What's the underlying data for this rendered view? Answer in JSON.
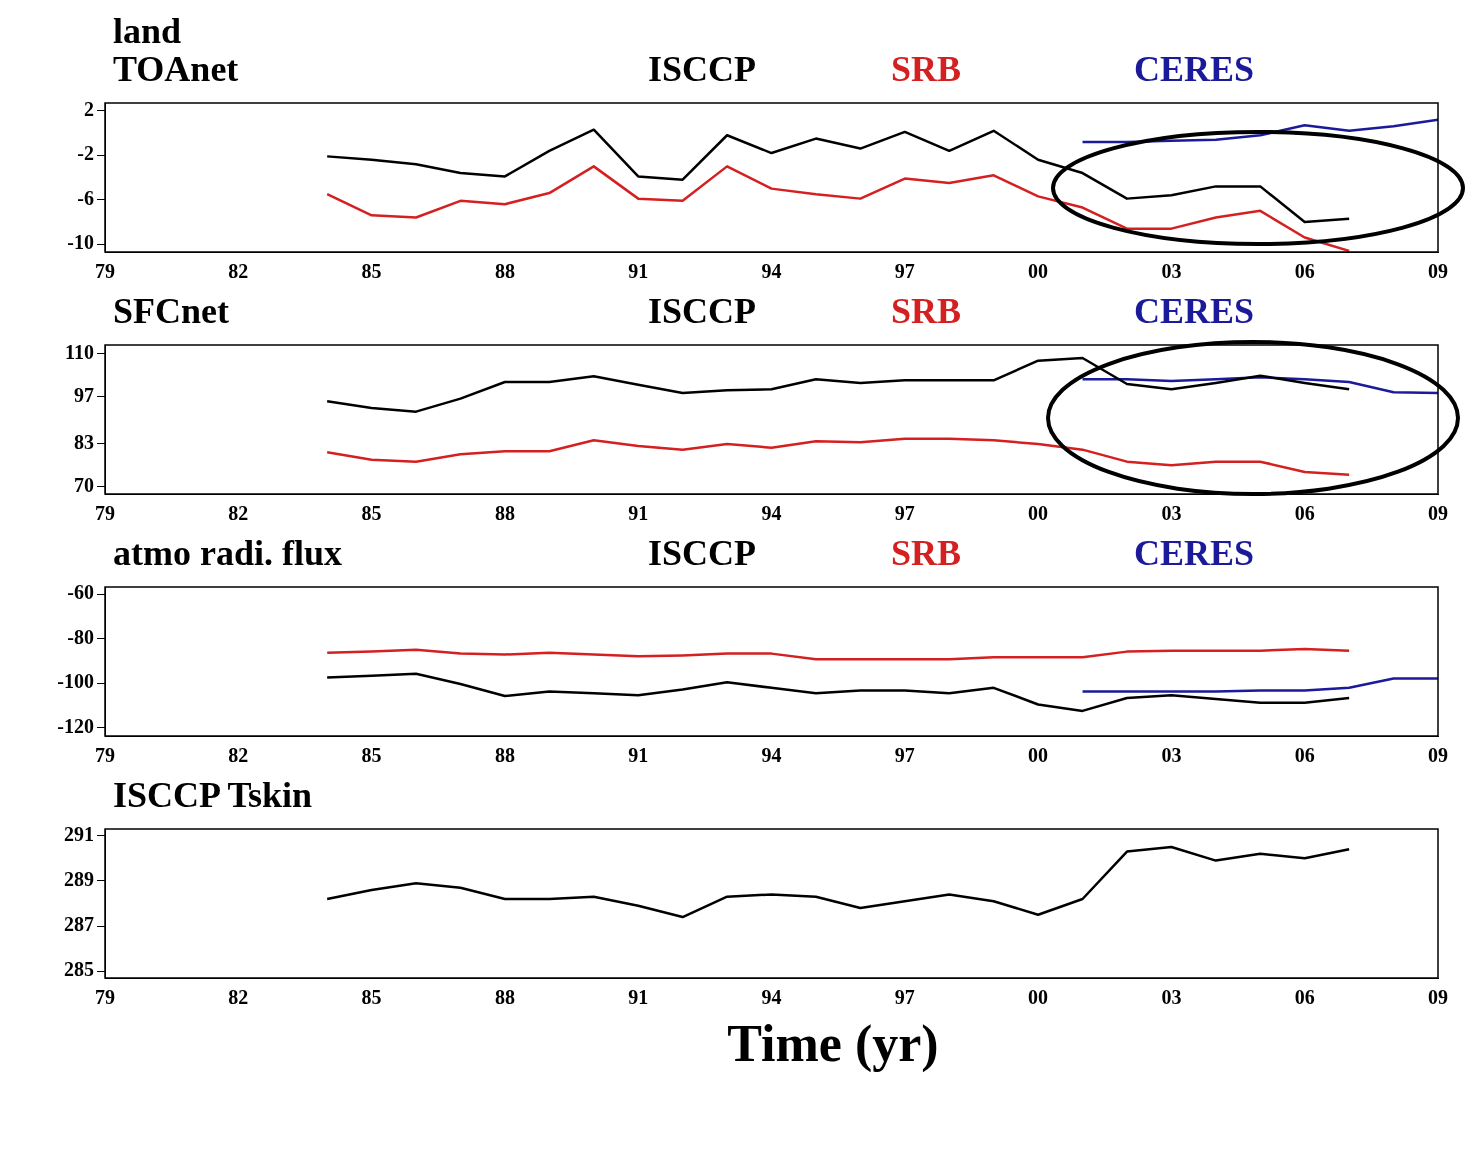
{
  "chart_data": [
    {
      "type": "line",
      "title": "land",
      "subtitle": "TOAnet",
      "legend": "top",
      "x": [
        1984,
        1985,
        1986,
        1987,
        1988,
        1989,
        1990,
        1991,
        1992,
        1993,
        1994,
        1995,
        1996,
        1997,
        1998,
        1999,
        2000,
        2001,
        2002,
        2003,
        2004,
        2005,
        2006,
        2007
      ],
      "xlim": [
        1979,
        2009
      ],
      "xticks": [
        {
          "value": 1979,
          "label": "79"
        },
        {
          "value": 1982,
          "label": "82"
        },
        {
          "value": 1985,
          "label": "85"
        },
        {
          "value": 1988,
          "label": "88"
        },
        {
          "value": 1991,
          "label": "91"
        },
        {
          "value": 1994,
          "label": "94"
        },
        {
          "value": 1997,
          "label": "97"
        },
        {
          "value": 2000,
          "label": "00"
        },
        {
          "value": 2003,
          "label": "03"
        },
        {
          "value": 2006,
          "label": "06"
        },
        {
          "value": 2009,
          "label": "09"
        }
      ],
      "ylim": [
        -10.7,
        2.7
      ],
      "yticks": [
        2,
        -2,
        -6,
        -10
      ],
      "series": [
        {
          "name": "ISCCP",
          "color": "#000000",
          "values": [
            -2.1,
            -2.4,
            -2.8,
            -3.6,
            -3.9,
            -1.6,
            0.3,
            -3.9,
            -4.2,
            -0.2,
            -1.8,
            -0.5,
            -1.4,
            0.1,
            -1.6,
            0.2,
            -2.4,
            -3.6,
            -5.9,
            -5.6,
            -4.8,
            -4.8,
            -8.0,
            -7.7
          ]
        },
        {
          "name": "SRB",
          "color": "#d42020",
          "values": [
            -5.5,
            -7.4,
            -7.6,
            -6.1,
            -6.4,
            -5.4,
            -3.0,
            -5.9,
            -6.1,
            -3.0,
            -5.0,
            -5.5,
            -5.9,
            -4.1,
            -4.5,
            -3.8,
            -5.7,
            -6.7,
            -8.6,
            -8.6,
            -7.6,
            -7.0,
            -9.4,
            -10.6
          ]
        },
        {
          "name": "CERES",
          "color": "#1a1a9a",
          "x": [
            2001,
            2002,
            2003,
            2004,
            2005,
            2006,
            2007,
            2008,
            2009
          ],
          "values": [
            -0.8,
            -0.8,
            -0.7,
            -0.6,
            -0.2,
            0.7,
            0.2,
            0.6,
            1.2
          ]
        }
      ]
    },
    {
      "type": "line",
      "title": "SFCnet",
      "legend": "top",
      "x": [
        1984,
        1985,
        1986,
        1987,
        1988,
        1989,
        1990,
        1991,
        1992,
        1993,
        1994,
        1995,
        1996,
        1997,
        1998,
        1999,
        2000,
        2001,
        2002,
        2003,
        2004,
        2005,
        2006,
        2007
      ],
      "xlim": [
        1979,
        2009
      ],
      "xticks": [
        {
          "value": 1979,
          "label": "79"
        },
        {
          "value": 1982,
          "label": "82"
        },
        {
          "value": 1985,
          "label": "85"
        },
        {
          "value": 1988,
          "label": "88"
        },
        {
          "value": 1991,
          "label": "91"
        },
        {
          "value": 1994,
          "label": "94"
        },
        {
          "value": 1997,
          "label": "97"
        },
        {
          "value": 2000,
          "label": "00"
        },
        {
          "value": 2003,
          "label": "03"
        },
        {
          "value": 2006,
          "label": "06"
        },
        {
          "value": 2009,
          "label": "09"
        }
      ],
      "ylim": [
        67.8,
        112.5
      ],
      "yticks": [
        110,
        97,
        83,
        70
      ],
      "series": [
        {
          "name": "ISCCP",
          "color": "#000000",
          "values": [
            95.6,
            93.6,
            92.5,
            96.4,
            101.4,
            101.4,
            103.1,
            100.6,
            98.1,
            98.9,
            99.2,
            102.2,
            101.1,
            101.9,
            101.9,
            101.9,
            107.8,
            108.6,
            100.8,
            99.2,
            101.1,
            103.3,
            101.1,
            99.2
          ]
        },
        {
          "name": "SRB",
          "color": "#d42020",
          "values": [
            80.3,
            78.1,
            77.5,
            79.7,
            80.6,
            80.6,
            83.9,
            82.2,
            81.1,
            82.8,
            81.7,
            83.6,
            83.3,
            84.4,
            84.4,
            83.9,
            82.8,
            81.1,
            77.5,
            76.4,
            77.5,
            77.5,
            74.4,
            73.6
          ]
        },
        {
          "name": "CERES",
          "color": "#1a1a9a",
          "x": [
            2001,
            2002,
            2003,
            2004,
            2005,
            2006,
            2007,
            2008,
            2009
          ],
          "values": [
            102.2,
            102.2,
            101.7,
            102.2,
            102.8,
            102.2,
            101.4,
            98.3,
            98.1
          ]
        }
      ]
    },
    {
      "type": "line",
      "title": "atmo radi. flux",
      "legend": "top",
      "x": [
        1984,
        1985,
        1986,
        1987,
        1988,
        1989,
        1990,
        1991,
        1992,
        1993,
        1994,
        1995,
        1996,
        1997,
        1998,
        1999,
        2000,
        2001,
        2002,
        2003,
        2004,
        2005,
        2006,
        2007
      ],
      "xlim": [
        1979,
        2009
      ],
      "xticks": [
        {
          "value": 1979,
          "label": "79"
        },
        {
          "value": 1982,
          "label": "82"
        },
        {
          "value": 1985,
          "label": "85"
        },
        {
          "value": 1988,
          "label": "88"
        },
        {
          "value": 1991,
          "label": "91"
        },
        {
          "value": 1994,
          "label": "94"
        },
        {
          "value": 1997,
          "label": "97"
        },
        {
          "value": 2000,
          "label": "00"
        },
        {
          "value": 2003,
          "label": "03"
        },
        {
          "value": 2006,
          "label": "06"
        },
        {
          "value": 2009,
          "label": "09"
        }
      ],
      "ylim": [
        -123.8,
        -56.7
      ],
      "yticks": [
        -60,
        -80,
        -100,
        -120
      ],
      "series": [
        {
          "name": "ISCCP",
          "color": "#000000",
          "values": [
            -97.5,
            -96.7,
            -95.8,
            -100.4,
            -105.8,
            -103.8,
            -104.6,
            -105.4,
            -102.9,
            -99.6,
            -102.1,
            -104.6,
            -103.3,
            -103.3,
            -104.6,
            -102.1,
            -109.6,
            -112.5,
            -106.7,
            -105.4,
            -107.1,
            -108.8,
            -108.8,
            -106.7
          ]
        },
        {
          "name": "SRB",
          "color": "#d42020",
          "values": [
            -86.3,
            -85.8,
            -85.0,
            -86.7,
            -87.1,
            -86.3,
            -87.1,
            -87.9,
            -87.5,
            -86.7,
            -86.7,
            -89.2,
            -89.2,
            -89.2,
            -89.2,
            -88.3,
            -88.3,
            -88.3,
            -85.8,
            -85.4,
            -85.4,
            -85.4,
            -84.6,
            -85.4
          ]
        },
        {
          "name": "CERES",
          "color": "#1a1a9a",
          "x": [
            2001,
            2002,
            2003,
            2004,
            2005,
            2006,
            2007,
            2008,
            2009
          ],
          "values": [
            -103.8,
            -103.8,
            -103.8,
            -103.8,
            -103.3,
            -103.3,
            -102.1,
            -97.9,
            -97.9
          ]
        }
      ]
    },
    {
      "type": "line",
      "title": "ISCCP Tskin",
      "xlabel": "Time (yr)",
      "x": [
        1984,
        1985,
        1986,
        1987,
        1988,
        1989,
        1990,
        1991,
        1992,
        1993,
        1994,
        1995,
        1996,
        1997,
        1998,
        1999,
        2000,
        2001,
        2002,
        2003,
        2004,
        2005,
        2006,
        2007
      ],
      "xlim": [
        1979,
        2009
      ],
      "xticks": [
        {
          "value": 1979,
          "label": "79"
        },
        {
          "value": 1982,
          "label": "82"
        },
        {
          "value": 1985,
          "label": "85"
        },
        {
          "value": 1988,
          "label": "88"
        },
        {
          "value": 1991,
          "label": "91"
        },
        {
          "value": 1994,
          "label": "94"
        },
        {
          "value": 1997,
          "label": "97"
        },
        {
          "value": 2000,
          "label": "00"
        },
        {
          "value": 2003,
          "label": "03"
        },
        {
          "value": 2006,
          "label": "06"
        },
        {
          "value": 2009,
          "label": "09"
        }
      ],
      "ylim": [
        284.7,
        291.3
      ],
      "yticks": [
        291,
        289,
        287,
        285
      ],
      "series": [
        {
          "color": "#000000",
          "values": [
            288.2,
            288.6,
            288.9,
            288.7,
            288.2,
            288.2,
            288.3,
            287.9,
            287.4,
            288.3,
            288.4,
            288.3,
            287.8,
            288.1,
            288.4,
            288.1,
            287.5,
            288.2,
            290.3,
            290.5,
            289.9,
            290.2,
            290.0,
            290.4
          ]
        }
      ]
    }
  ]
}
